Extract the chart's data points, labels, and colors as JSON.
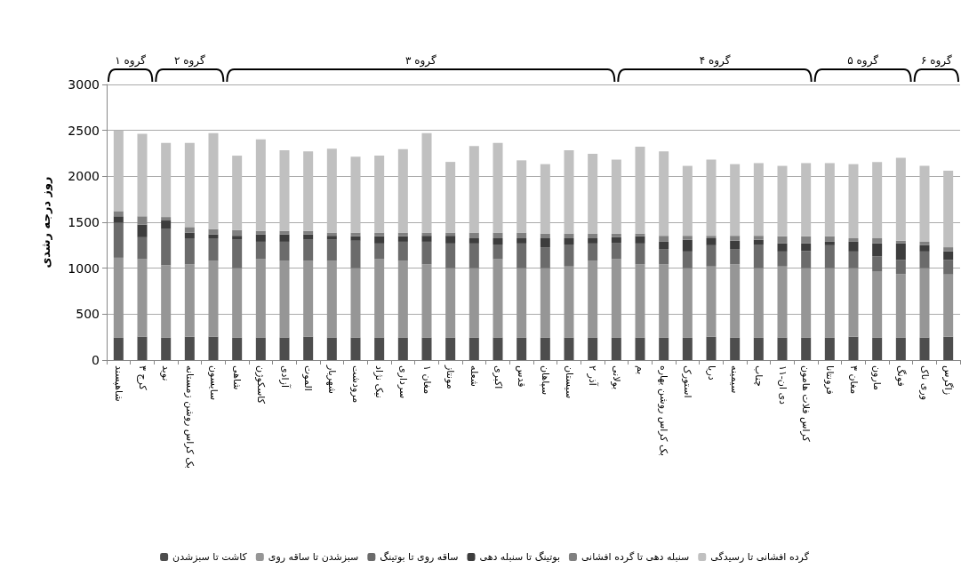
{
  "chart_data": {
    "type": "bar",
    "stacked": true,
    "ylabel": "روز درجه رشدی",
    "categories": [
      "شاهپسند",
      "کرج ۳",
      "نوید",
      "بک کراس روشن زمستانه",
      "سایسون",
      "شاهی",
      "کاسکوژن",
      "آزادی",
      "الموت",
      "شهریار",
      "مرودشت",
      "نیک نژاد",
      "سرداری",
      "مغان ۱",
      "مونتاز",
      "شعله",
      "اکبری",
      "قدس",
      "سپاهان",
      "سیستان",
      "آذر ۲",
      "بولانی",
      "بم",
      "بک کراس روشن بهاره",
      "استورک",
      "دریا",
      "سیمینه",
      "چناب",
      "دی ان-۱۱",
      "کراس فلات هامون",
      "فرونتانا",
      "مغان ۳",
      "مارون",
      "فونگ",
      "وری ناک",
      "زاگرس"
    ],
    "series": [
      {
        "name": "کاشت تا سبزشدن",
        "color": "#4d4d4d",
        "values": [
          245,
          255,
          245,
          255,
          255,
          245,
          245,
          245,
          255,
          245,
          245,
          245,
          245,
          245,
          245,
          245,
          245,
          245,
          245,
          245,
          245,
          245,
          245,
          245,
          245,
          255,
          245,
          245,
          245,
          245,
          245,
          255,
          245,
          245,
          245,
          255
        ]
      },
      {
        "name": "سبزشدن تا ساقه روی",
        "color": "#969696",
        "values": [
          869,
          845,
          787,
          788,
          824,
          755,
          855,
          834,
          824,
          834,
          755,
          855,
          834,
          798,
          755,
          755,
          855,
          755,
          755,
          774,
          834,
          855,
          798,
          798,
          755,
          764,
          798,
          755,
          774,
          755,
          755,
          745,
          717,
          692,
          755,
          677
        ]
      },
      {
        "name": "ساقه روی تا بوتینگ",
        "color": "#6b6b6b",
        "values": [
          380,
          237,
          394,
          283,
          247,
          310,
          188,
          209,
          231,
          231,
          299,
          169,
          209,
          245,
          269,
          269,
          158,
          269,
          228,
          239,
          190,
          177,
          226,
          166,
          182,
          231,
          166,
          258,
          163,
          187,
          250,
          182,
          168,
          153,
          182,
          158
        ]
      },
      {
        "name": "بوتینگ تا سنبله دهی",
        "color": "#3d3d3d",
        "values": [
          71,
          138,
          93,
          62,
          41,
          43,
          79,
          79,
          57,
          43,
          49,
          79,
          60,
          65,
          84,
          57,
          68,
          57,
          98,
          68,
          57,
          60,
          79,
          79,
          128,
          76,
          90,
          52,
          87,
          82,
          38,
          106,
          139,
          179,
          68,
          92
        ]
      },
      {
        "name": "سنبله دهی تا گرده افشانی",
        "color": "#808080",
        "values": [
          57,
          90,
          38,
          60,
          59,
          63,
          40,
          40,
          40,
          35,
          40,
          40,
          40,
          35,
          35,
          62,
          62,
          62,
          51,
          51,
          51,
          40,
          29,
          65,
          43,
          27,
          54,
          43,
          79,
          79,
          60,
          38,
          57,
          30,
          38,
          46
        ]
      },
      {
        "name": "گرده افشانی تا رسیدگی",
        "color": "#c0c0c0",
        "values": [
          878,
          899,
          807,
          916,
          1044,
          809,
          995,
          878,
          864,
          913,
          826,
          837,
          908,
          1082,
          769,
          941,
          976,
          786,
          756,
          908,
          867,
          805,
          946,
          918,
          761,
          829,
          780,
          791,
          766,
          796,
          796,
          807,
          829,
          902,
          826,
          834
        ]
      }
    ],
    "ylim": [
      0,
      3000
    ],
    "yticks": [
      0,
      500,
      1000,
      1500,
      2000,
      2500,
      3000
    ],
    "grid": "y",
    "legend": "bottom",
    "annotations": [
      "گروه ۱",
      "گروه ۲",
      "گروه ۳",
      "گروه ۴",
      "گروه ۵",
      "گروه ۶"
    ]
  }
}
